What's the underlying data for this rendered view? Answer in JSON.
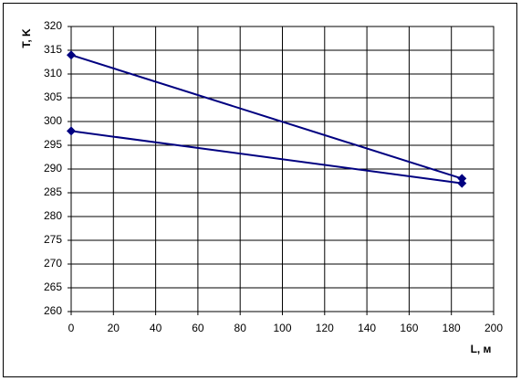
{
  "chart_data": {
    "type": "line",
    "xlabel": "L, м",
    "ylabel": "T, K",
    "series": [
      {
        "color": "#000080",
        "x": [
          0,
          185
        ],
        "values": [
          314,
          288
        ]
      },
      {
        "color": "#000080",
        "x": [
          0,
          185
        ],
        "values": [
          298,
          287
        ]
      }
    ],
    "xlim": [
      0,
      200
    ],
    "xticks": [
      0,
      20,
      40,
      60,
      80,
      100,
      120,
      140,
      160,
      180,
      200
    ],
    "ylim": [
      260,
      320
    ],
    "yticks": [
      260,
      265,
      270,
      275,
      280,
      285,
      290,
      295,
      300,
      305,
      310,
      315,
      320
    ],
    "grid": true
  }
}
